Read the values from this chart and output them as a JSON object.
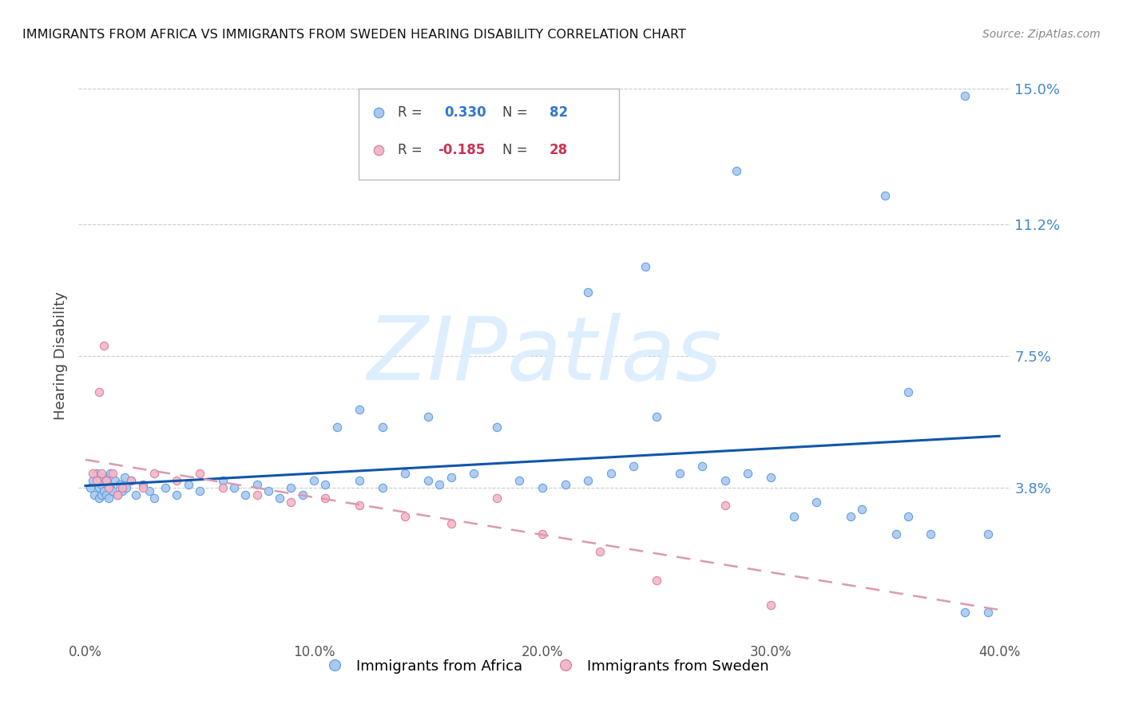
{
  "title": "IMMIGRANTS FROM AFRICA VS IMMIGRANTS FROM SWEDEN HEARING DISABILITY CORRELATION CHART",
  "source": "Source: ZipAtlas.com",
  "ylabel": "Hearing Disability",
  "r_africa": 0.33,
  "n_africa": 82,
  "r_sweden": -0.185,
  "n_sweden": 28,
  "color_africa_fill": "#aac8f0",
  "color_africa_edge": "#5599dd",
  "color_sweden_fill": "#f0b8c8",
  "color_sweden_edge": "#dd7799",
  "color_trendline_africa": "#1155aa",
  "color_trendline_sweden": "#dd99aa",
  "watermark": "ZIPatlas",
  "watermark_color": "#ddeeff",
  "xlim": [
    0,
    40
  ],
  "ylim": [
    0,
    0.155
  ],
  "x_tick_vals": [
    0,
    10,
    20,
    30,
    40
  ],
  "x_tick_labels": [
    "0.0%",
    "10.0%",
    "20.0%",
    "30.0%",
    "40.0%"
  ],
  "y_tick_vals": [
    0.038,
    0.075,
    0.112,
    0.15
  ],
  "y_tick_labels": [
    "3.8%",
    "7.5%",
    "11.2%",
    "15.0%"
  ],
  "legend_africa": "Immigrants from Africa",
  "legend_sweden": "Immigrants from Sweden",
  "africa_x": [
    0.2,
    0.3,
    0.4,
    0.5,
    0.6,
    0.6,
    0.7,
    0.7,
    0.8,
    0.8,
    0.9,
    0.9,
    1.0,
    1.0,
    1.1,
    1.1,
    1.2,
    1.3,
    1.4,
    1.5,
    1.6,
    1.7,
    1.8,
    2.0,
    2.2,
    2.5,
    2.8,
    3.0,
    3.5,
    4.0,
    4.5,
    5.0,
    6.0,
    6.5,
    7.0,
    7.5,
    8.0,
    8.5,
    9.0,
    9.5,
    10.0,
    10.5,
    11.0,
    12.0,
    13.0,
    14.0,
    15.0,
    15.5,
    16.0,
    17.0,
    18.0,
    19.0,
    20.0,
    21.0,
    22.0,
    23.0,
    24.0,
    25.0,
    26.0,
    27.0,
    28.0,
    29.0,
    30.0,
    31.0,
    32.0,
    33.5,
    34.0,
    35.5,
    36.0,
    37.0,
    38.5,
    39.5,
    22.0,
    24.5,
    28.5,
    35.0,
    36.0,
    38.5,
    39.5,
    15.0,
    13.0,
    12.0
  ],
  "africa_y": [
    0.038,
    0.04,
    0.036,
    0.042,
    0.038,
    0.035,
    0.039,
    0.036,
    0.041,
    0.037,
    0.04,
    0.036,
    0.038,
    0.035,
    0.042,
    0.038,
    0.037,
    0.04,
    0.036,
    0.039,
    0.037,
    0.041,
    0.038,
    0.04,
    0.036,
    0.039,
    0.037,
    0.035,
    0.038,
    0.036,
    0.039,
    0.037,
    0.04,
    0.038,
    0.036,
    0.039,
    0.037,
    0.035,
    0.038,
    0.036,
    0.04,
    0.039,
    0.055,
    0.04,
    0.038,
    0.042,
    0.04,
    0.039,
    0.041,
    0.042,
    0.055,
    0.04,
    0.038,
    0.039,
    0.04,
    0.042,
    0.044,
    0.058,
    0.042,
    0.044,
    0.04,
    0.042,
    0.041,
    0.03,
    0.034,
    0.03,
    0.032,
    0.025,
    0.03,
    0.025,
    0.003,
    0.003,
    0.093,
    0.1,
    0.127,
    0.12,
    0.065,
    0.148,
    0.025,
    0.058,
    0.055,
    0.06
  ],
  "sweden_x": [
    0.3,
    0.5,
    0.6,
    0.7,
    0.8,
    0.9,
    1.0,
    1.2,
    1.4,
    1.6,
    2.0,
    2.5,
    3.0,
    4.0,
    5.0,
    6.0,
    7.5,
    9.0,
    10.5,
    12.0,
    14.0,
    16.0,
    18.0,
    20.0,
    22.5,
    25.0,
    28.0,
    30.0
  ],
  "sweden_y": [
    0.042,
    0.04,
    0.065,
    0.042,
    0.078,
    0.04,
    0.038,
    0.042,
    0.036,
    0.038,
    0.04,
    0.038,
    0.042,
    0.04,
    0.042,
    0.038,
    0.036,
    0.034,
    0.035,
    0.033,
    0.03,
    0.028,
    0.035,
    0.025,
    0.02,
    0.012,
    0.033,
    0.005
  ]
}
